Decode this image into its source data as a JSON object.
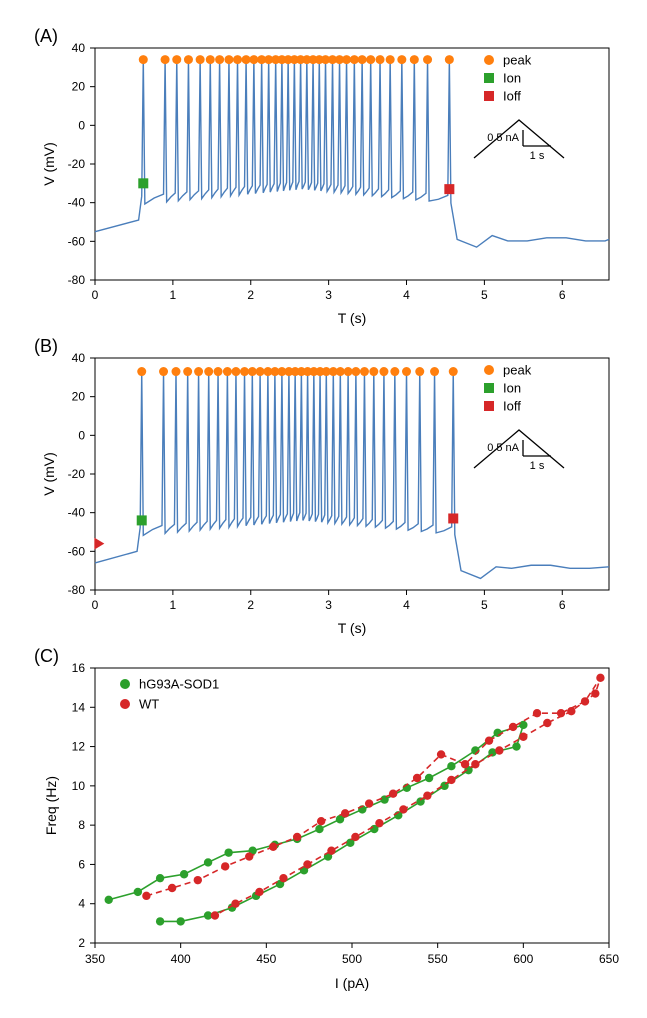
{
  "panels": {
    "A": {
      "label": "(A)",
      "xlabel": "T (s)",
      "ylabel": "V (mV)",
      "xlim": [
        0,
        6.6
      ],
      "ylim": [
        -80,
        40
      ],
      "xtick_step": 1,
      "ytick_step": 20,
      "legend": {
        "items": [
          {
            "label": "peak",
            "type": "circle",
            "color": "#ff7f0e"
          },
          {
            "label": "Ion",
            "type": "square",
            "color": "#2ca02c"
          },
          {
            "label": "Ioff",
            "type": "square",
            "color": "#d62728"
          }
        ]
      },
      "inset_scale": {
        "h_label": "1 s",
        "v_label": "0.5 nA"
      },
      "trace_color": "#4a7ebb",
      "baseline": -55,
      "spike_top": 34,
      "ion": {
        "t": 0.62,
        "v": -30
      },
      "ioff": {
        "t": 4.55,
        "v": -33
      },
      "spike_times": [
        0.62,
        0.9,
        1.05,
        1.2,
        1.35,
        1.48,
        1.6,
        1.72,
        1.83,
        1.94,
        2.04,
        2.14,
        2.23,
        2.32,
        2.4,
        2.48,
        2.56,
        2.64,
        2.72,
        2.8,
        2.88,
        2.96,
        3.05,
        3.14,
        3.23,
        3.33,
        3.43,
        3.54,
        3.66,
        3.79,
        3.94,
        4.1,
        4.27,
        4.55
      ]
    },
    "B": {
      "label": "(B)",
      "xlabel": "T (s)",
      "ylabel": "V (mV)",
      "xlim": [
        0,
        6.6
      ],
      "ylim": [
        -80,
        40
      ],
      "xtick_step": 1,
      "ytick_step": 20,
      "legend": {
        "items": [
          {
            "label": "peak",
            "type": "circle",
            "color": "#ff7f0e"
          },
          {
            "label": "Ion",
            "type": "square",
            "color": "#2ca02c"
          },
          {
            "label": "Ioff",
            "type": "square",
            "color": "#d62728"
          }
        ]
      },
      "inset_scale": {
        "h_label": "1 s",
        "v_label": "0.5 nA"
      },
      "trace_color": "#4a7ebb",
      "baseline": -66,
      "spike_top": 33,
      "ion": {
        "t": 0.6,
        "v": -44
      },
      "ioff": {
        "t": 4.6,
        "v": -43
      },
      "arrow": {
        "t": 0.12,
        "v": -56,
        "color": "#d62728"
      },
      "spike_times": [
        0.6,
        0.88,
        1.04,
        1.19,
        1.33,
        1.46,
        1.58,
        1.7,
        1.81,
        1.92,
        2.02,
        2.12,
        2.22,
        2.31,
        2.4,
        2.49,
        2.57,
        2.65,
        2.73,
        2.81,
        2.89,
        2.97,
        3.06,
        3.15,
        3.25,
        3.35,
        3.46,
        3.58,
        3.71,
        3.85,
        4.0,
        4.17,
        4.36,
        4.6
      ]
    },
    "C": {
      "label": "(C)",
      "xlabel": "I (pA)",
      "ylabel": "Freq (Hz)",
      "xlim": [
        350,
        650
      ],
      "ylim": [
        2,
        16
      ],
      "xtick_step": 50,
      "ytick_step": 2,
      "legend": {
        "items": [
          {
            "label": "hG93A-SOD1",
            "type": "circle",
            "color": "#2ca02c",
            "line": "solid"
          },
          {
            "label": "WT",
            "type": "circle",
            "color": "#d62728",
            "line": "dashed"
          }
        ]
      },
      "series": {
        "hG93A": {
          "color": "#2ca02c",
          "linestyle": "solid",
          "points": [
            [
              358,
              4.2
            ],
            [
              375,
              4.6
            ],
            [
              388,
              5.3
            ],
            [
              402,
              5.5
            ],
            [
              416,
              6.1
            ],
            [
              428,
              6.6
            ],
            [
              442,
              6.7
            ],
            [
              455,
              7.0
            ],
            [
              468,
              7.3
            ],
            [
              481,
              7.8
            ],
            [
              493,
              8.3
            ],
            [
              506,
              8.8
            ],
            [
              519,
              9.3
            ],
            [
              532,
              9.9
            ],
            [
              545,
              10.4
            ],
            [
              558,
              11.0
            ],
            [
              572,
              11.8
            ],
            [
              585,
              12.7
            ],
            [
              600,
              13.1
            ],
            [
              596,
              12.0
            ],
            [
              582,
              11.7
            ],
            [
              568,
              10.8
            ],
            [
              554,
              10.0
            ],
            [
              540,
              9.2
            ],
            [
              527,
              8.5
            ],
            [
              513,
              7.8
            ],
            [
              499,
              7.1
            ],
            [
              486,
              6.4
            ],
            [
              472,
              5.7
            ],
            [
              458,
              5.0
            ],
            [
              444,
              4.4
            ],
            [
              430,
              3.8
            ],
            [
              416,
              3.4
            ],
            [
              400,
              3.1
            ],
            [
              388,
              3.1
            ]
          ]
        },
        "WT": {
          "color": "#d62728",
          "linestyle": "dashed",
          "points": [
            [
              380,
              4.4
            ],
            [
              395,
              4.8
            ],
            [
              410,
              5.2
            ],
            [
              426,
              5.9
            ],
            [
              440,
              6.4
            ],
            [
              454,
              6.9
            ],
            [
              468,
              7.4
            ],
            [
              482,
              8.2
            ],
            [
              496,
              8.6
            ],
            [
              510,
              9.1
            ],
            [
              524,
              9.6
            ],
            [
              538,
              10.4
            ],
            [
              552,
              11.6
            ],
            [
              566,
              11.1
            ],
            [
              580,
              12.3
            ],
            [
              594,
              13.0
            ],
            [
              608,
              13.7
            ],
            [
              622,
              13.7
            ],
            [
              636,
              14.3
            ],
            [
              645,
              15.5
            ],
            [
              642,
              14.7
            ],
            [
              628,
              13.8
            ],
            [
              614,
              13.2
            ],
            [
              600,
              12.5
            ],
            [
              586,
              11.8
            ],
            [
              572,
              11.1
            ],
            [
              558,
              10.3
            ],
            [
              544,
              9.5
            ],
            [
              530,
              8.8
            ],
            [
              516,
              8.1
            ],
            [
              502,
              7.4
            ],
            [
              488,
              6.7
            ],
            [
              474,
              6.0
            ],
            [
              460,
              5.3
            ],
            [
              446,
              4.6
            ],
            [
              432,
              4.0
            ],
            [
              420,
              3.4
            ]
          ]
        }
      }
    }
  },
  "fonts": {
    "label_size": 14,
    "panel_label_size": 18,
    "tick_size": 12,
    "legend_size": 13
  },
  "colors": {
    "background": "#ffffff",
    "axis": "#000000",
    "text": "#000000"
  }
}
